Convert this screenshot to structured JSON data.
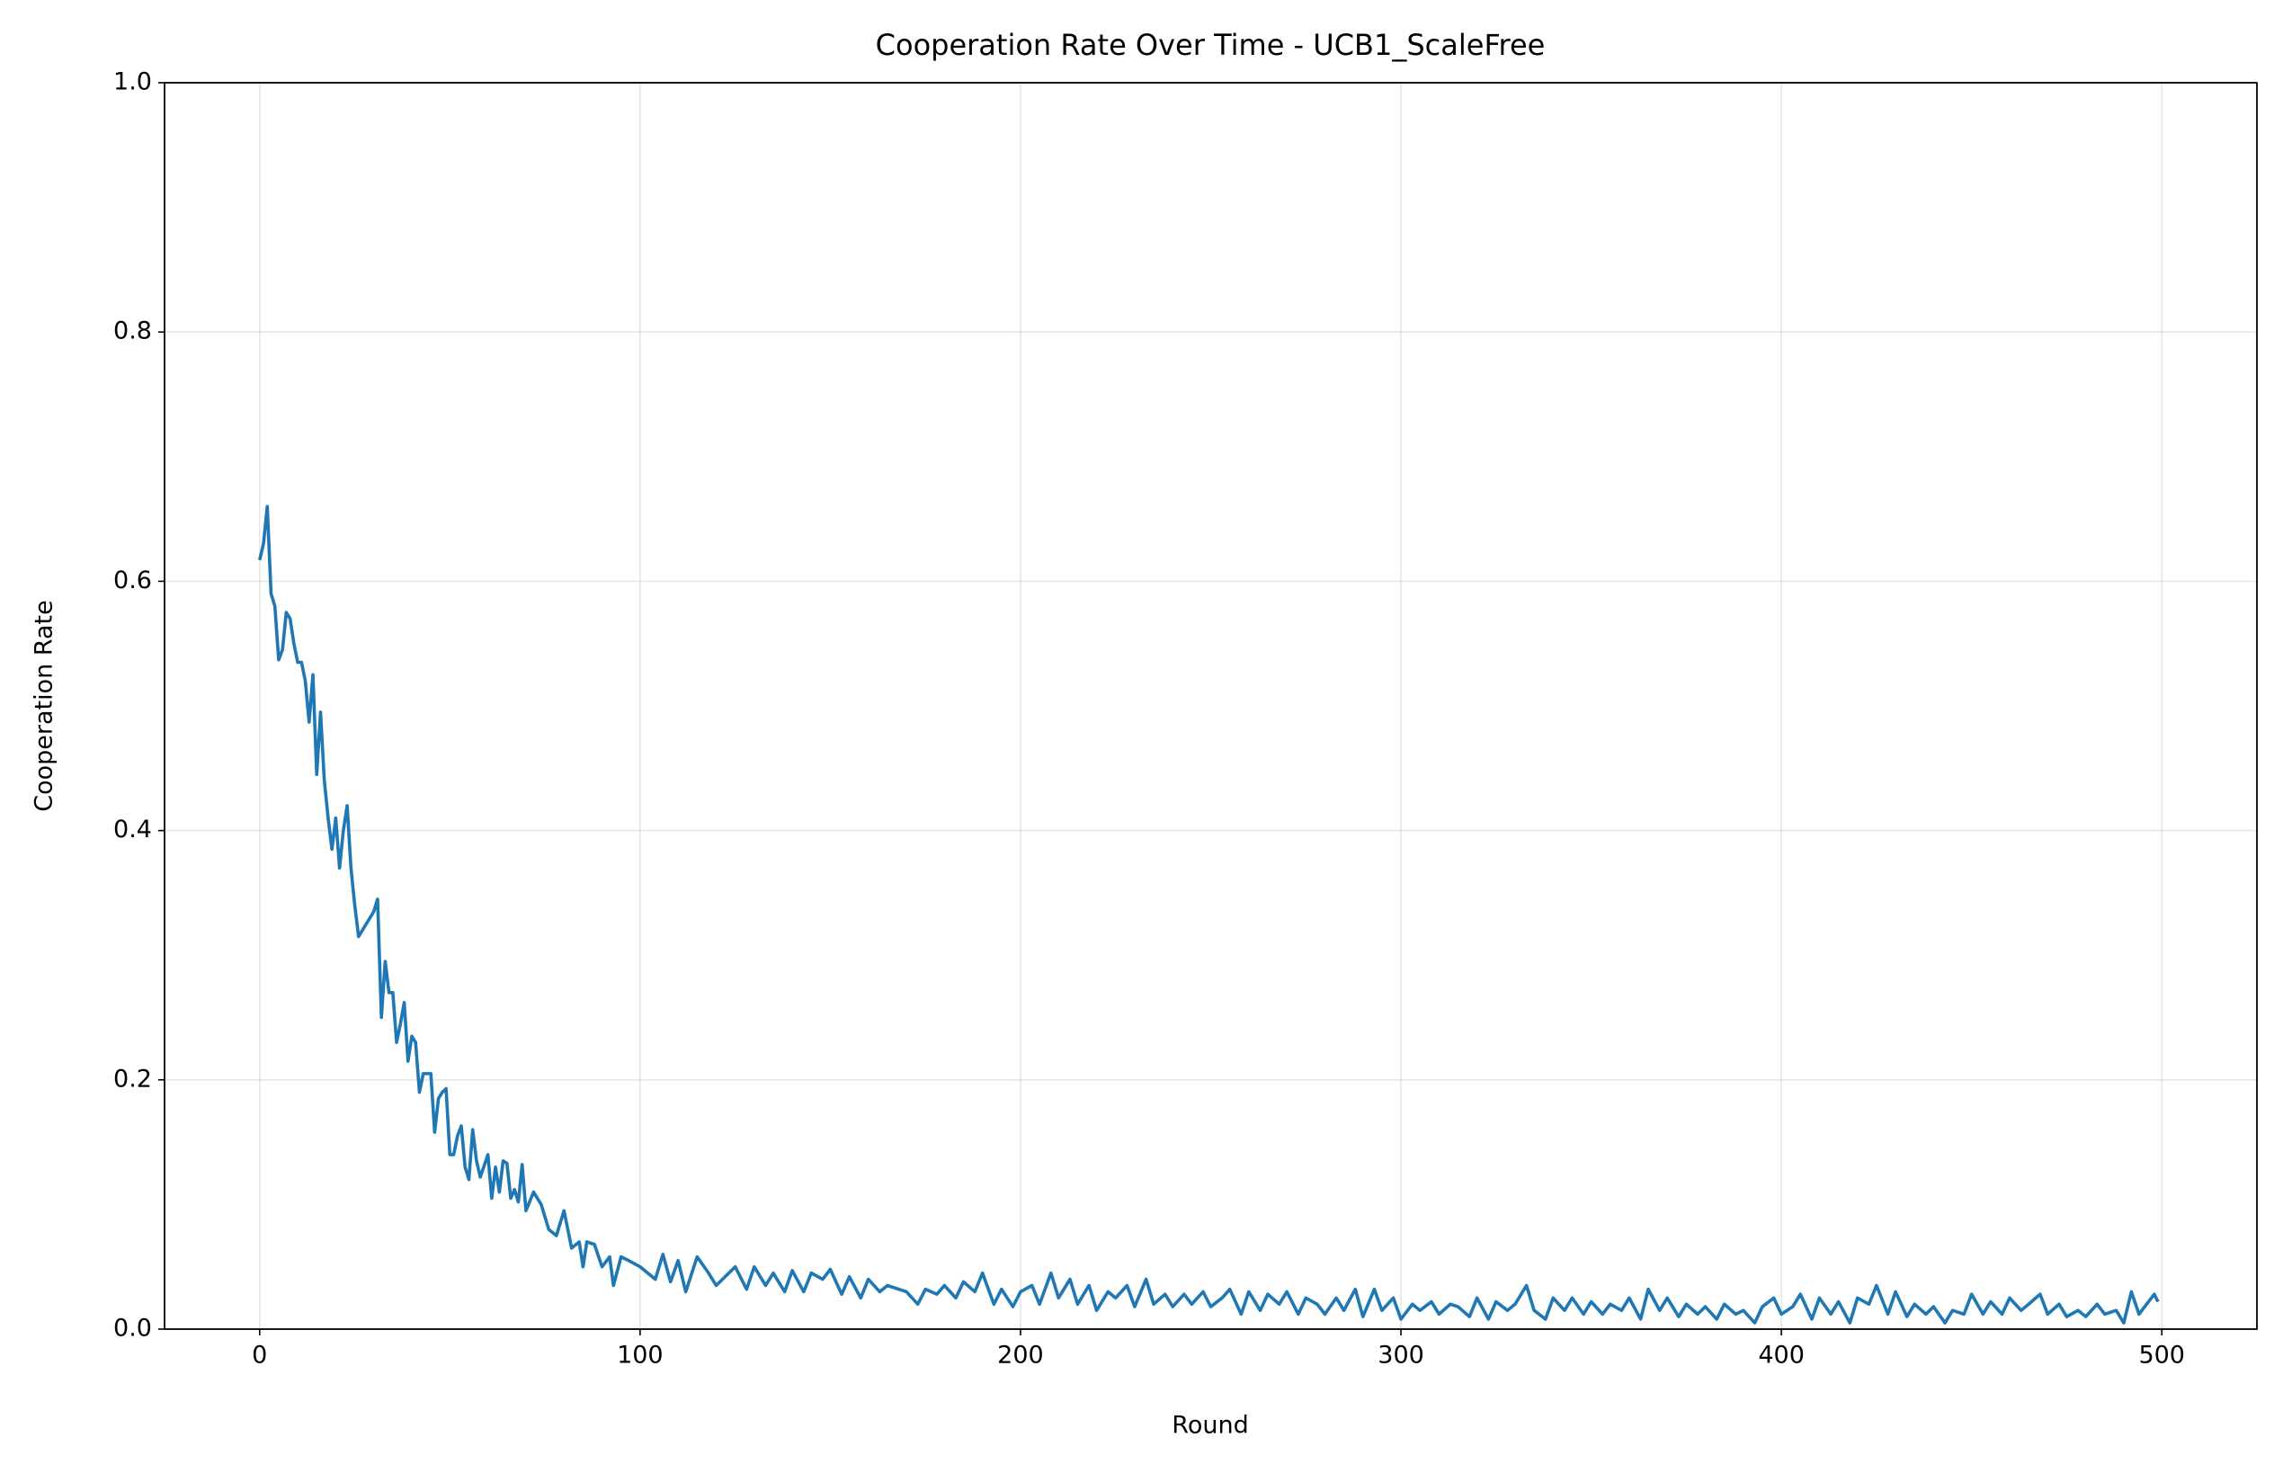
{
  "chart_data": {
    "type": "line",
    "title": "Cooperation Rate Over Time - UCB1_ScaleFree",
    "x_label": "Round",
    "y_label": "Cooperation Rate",
    "x": [
      0,
      1,
      2,
      3,
      4,
      5,
      6,
      7,
      8,
      9,
      10,
      11,
      12,
      13,
      14,
      15,
      16,
      17,
      18,
      19,
      20,
      21,
      22,
      23,
      24,
      25,
      26,
      28,
      30,
      31,
      32,
      33,
      34,
      35,
      36,
      37,
      38,
      39,
      40,
      41,
      42,
      43,
      45,
      46,
      47,
      48,
      49,
      50,
      51,
      52,
      53,
      54,
      55,
      56,
      57,
      58,
      60,
      61,
      62,
      63,
      64,
      65,
      66,
      67,
      68,
      69,
      70,
      72,
      74,
      76,
      78,
      80,
      82,
      84,
      85,
      86,
      88,
      90,
      92,
      93,
      95,
      97,
      100,
      102,
      104,
      106,
      108,
      110,
      112,
      115,
      118,
      120,
      125,
      128,
      130,
      133,
      135,
      138,
      140,
      143,
      145,
      148,
      150,
      153,
      155,
      158,
      160,
      163,
      165,
      170,
      173,
      175,
      178,
      180,
      183,
      185,
      188,
      190,
      193,
      195,
      198,
      200,
      203,
      205,
      208,
      210,
      213,
      215,
      218,
      220,
      223,
      225,
      228,
      230,
      233,
      235,
      238,
      240,
      243,
      245,
      248,
      250,
      253,
      255,
      258,
      260,
      263,
      265,
      268,
      270,
      273,
      275,
      278,
      280,
      283,
      285,
      288,
      290,
      293,
      295,
      298,
      300,
      303,
      305,
      308,
      310,
      313,
      315,
      318,
      320,
      323,
      325,
      328,
      330,
      333,
      335,
      338,
      340,
      343,
      345,
      348,
      350,
      353,
      355,
      358,
      360,
      363,
      365,
      368,
      370,
      373,
      375,
      378,
      380,
      383,
      385,
      388,
      390,
      393,
      395,
      398,
      400,
      403,
      405,
      408,
      410,
      413,
      415,
      418,
      420,
      423,
      425,
      428,
      430,
      433,
      435,
      438,
      440,
      443,
      445,
      448,
      450,
      453,
      455,
      458,
      460,
      463,
      465,
      468,
      470,
      473,
      475,
      478,
      480,
      483,
      485,
      488,
      490,
      492,
      494,
      496,
      498,
      499
    ],
    "series": [
      {
        "name": "Cooperation Rate",
        "color": "#1f77b4",
        "values": [
          0.617,
          0.63,
          0.66,
          0.59,
          0.58,
          0.537,
          0.545,
          0.575,
          0.57,
          0.55,
          0.535,
          0.535,
          0.52,
          0.487,
          0.525,
          0.445,
          0.495,
          0.44,
          0.41,
          0.385,
          0.41,
          0.37,
          0.4,
          0.42,
          0.37,
          0.34,
          0.315,
          0.325,
          0.335,
          0.345,
          0.25,
          0.295,
          0.27,
          0.27,
          0.23,
          0.245,
          0.262,
          0.215,
          0.235,
          0.23,
          0.19,
          0.205,
          0.205,
          0.158,
          0.185,
          0.19,
          0.193,
          0.14,
          0.14,
          0.155,
          0.163,
          0.13,
          0.12,
          0.16,
          0.135,
          0.122,
          0.14,
          0.105,
          0.13,
          0.11,
          0.135,
          0.133,
          0.105,
          0.112,
          0.102,
          0.132,
          0.095,
          0.11,
          0.1,
          0.08,
          0.075,
          0.095,
          0.065,
          0.07,
          0.05,
          0.07,
          0.068,
          0.05,
          0.058,
          0.035,
          0.058,
          0.055,
          0.05,
          0.045,
          0.04,
          0.06,
          0.038,
          0.055,
          0.03,
          0.058,
          0.045,
          0.035,
          0.05,
          0.032,
          0.05,
          0.035,
          0.045,
          0.03,
          0.047,
          0.03,
          0.045,
          0.04,
          0.048,
          0.028,
          0.042,
          0.025,
          0.04,
          0.03,
          0.035,
          0.03,
          0.02,
          0.032,
          0.028,
          0.035,
          0.025,
          0.038,
          0.03,
          0.045,
          0.02,
          0.032,
          0.018,
          0.03,
          0.035,
          0.02,
          0.045,
          0.025,
          0.04,
          0.02,
          0.035,
          0.015,
          0.03,
          0.025,
          0.035,
          0.018,
          0.04,
          0.02,
          0.028,
          0.018,
          0.028,
          0.02,
          0.03,
          0.018,
          0.025,
          0.032,
          0.012,
          0.03,
          0.015,
          0.028,
          0.02,
          0.03,
          0.012,
          0.025,
          0.02,
          0.012,
          0.025,
          0.015,
          0.032,
          0.01,
          0.032,
          0.015,
          0.025,
          0.008,
          0.02,
          0.015,
          0.022,
          0.012,
          0.02,
          0.018,
          0.01,
          0.025,
          0.008,
          0.022,
          0.015,
          0.02,
          0.035,
          0.015,
          0.008,
          0.025,
          0.015,
          0.025,
          0.012,
          0.022,
          0.012,
          0.02,
          0.015,
          0.025,
          0.008,
          0.032,
          0.015,
          0.025,
          0.01,
          0.02,
          0.012,
          0.018,
          0.008,
          0.02,
          0.012,
          0.015,
          0.005,
          0.018,
          0.025,
          0.012,
          0.018,
          0.028,
          0.008,
          0.025,
          0.012,
          0.022,
          0.005,
          0.025,
          0.02,
          0.035,
          0.012,
          0.03,
          0.01,
          0.02,
          0.012,
          0.018,
          0.005,
          0.015,
          0.012,
          0.028,
          0.012,
          0.022,
          0.012,
          0.025,
          0.015,
          0.02,
          0.028,
          0.012,
          0.02,
          0.01,
          0.015,
          0.01,
          0.02,
          0.012,
          0.015,
          0.005,
          0.03,
          0.012,
          0.02,
          0.028,
          0.022
        ]
      }
    ],
    "xlim": [
      -25,
      525
    ],
    "ylim": [
      0,
      1
    ],
    "xticks": [
      0,
      100,
      200,
      300,
      400,
      500
    ],
    "yticks": [
      {
        "value": 0,
        "label": "0.0"
      },
      0.2,
      0.4,
      0.6,
      0.8,
      {
        "value": 1,
        "label": "1.0"
      }
    ],
    "grid": true
  }
}
